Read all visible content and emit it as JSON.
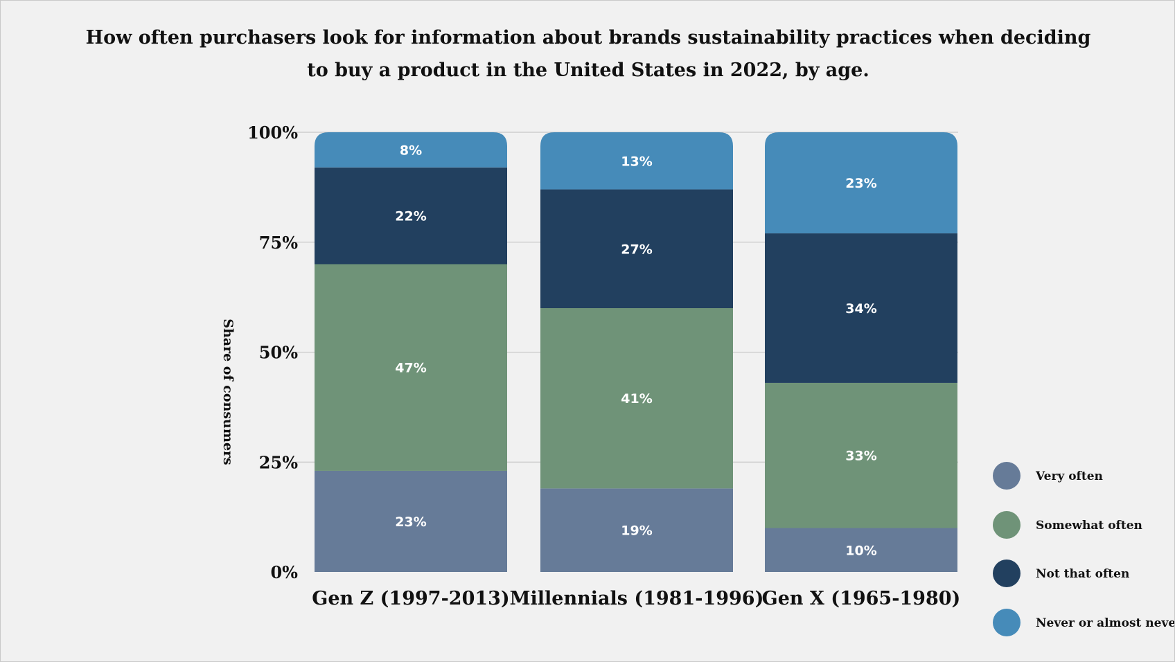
{
  "chart_data": {
    "type": "bar",
    "stacked": true,
    "title_lines": [
      "How often purchasers look for information about brands sustainability practices when deciding",
      "to buy a product in the United States in 2022, by age."
    ],
    "ylabel": "Share of consumers",
    "xlabel": "",
    "ylim": [
      0,
      100
    ],
    "yticks": [
      0,
      25,
      50,
      75,
      100
    ],
    "ytick_labels": [
      "0%",
      "25%",
      "50%",
      "75%",
      "100%"
    ],
    "categories": [
      "Gen Z (1997-2013)",
      "Millennials (1981-1996)",
      "Gen X (1965-1980)"
    ],
    "series": [
      {
        "name": "Very often",
        "color": "#667b98",
        "values": [
          23,
          19,
          10
        ],
        "labels": [
          "23%",
          "19%",
          "10%"
        ]
      },
      {
        "name": "Somewhat often",
        "color": "#6f9378",
        "values": [
          47,
          41,
          33
        ],
        "labels": [
          "47%",
          "41%",
          "33%"
        ]
      },
      {
        "name": "Not that often",
        "color": "#22405f",
        "values": [
          22,
          27,
          34
        ],
        "labels": [
          "22%",
          "27%",
          "34%"
        ]
      },
      {
        "name": "Never or almost never",
        "color": "#468bb9",
        "values": [
          8,
          13,
          23
        ],
        "labels": [
          "8%",
          "13%",
          "23%"
        ]
      }
    ],
    "grid": true,
    "legend_position": "bottom-right"
  }
}
